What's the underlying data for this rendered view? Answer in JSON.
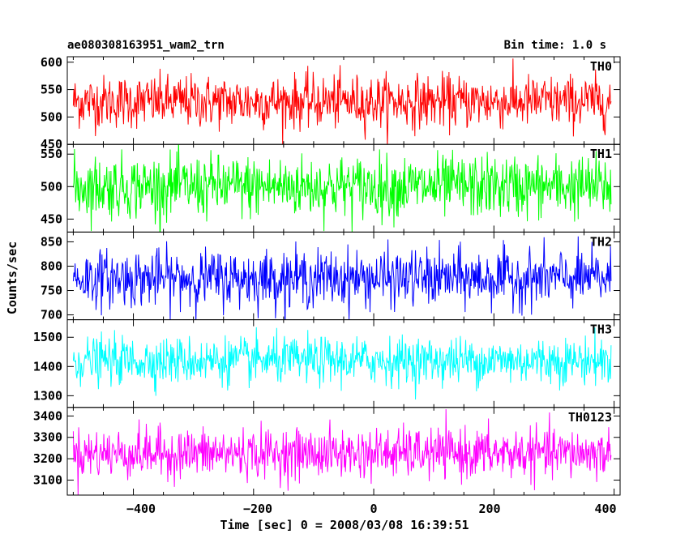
{
  "header": {
    "object_name": "ae080308163951_wam2_trn",
    "bin_time": "Bin time: 1.0 s"
  },
  "axes": {
    "ylabel": "Counts/sec",
    "xlabel": "Time [sec] 0 = 2008/03/08 16:39:51",
    "x_ticks": [
      "−400",
      "−200",
      "0",
      "200",
      "400"
    ]
  },
  "chart_data": {
    "type": "line",
    "x_range": [
      -510,
      410
    ],
    "x_ticks": [
      -400,
      -200,
      0,
      200,
      400
    ],
    "n_points": 900,
    "series": [
      {
        "name": "TH0",
        "color": "#ff0000",
        "ylim": [
          450,
          610
        ],
        "y_ticks": [
          450,
          500,
          550,
          600
        ],
        "mean": 528,
        "sigma": 24
      },
      {
        "name": "TH1",
        "color": "#00ff00",
        "ylim": [
          430,
          565
        ],
        "y_ticks": [
          450,
          500,
          550
        ],
        "mean": 500,
        "sigma": 24
      },
      {
        "name": "TH2",
        "color": "#0000ff",
        "ylim": [
          690,
          870
        ],
        "y_ticks": [
          700,
          750,
          800,
          850
        ],
        "mean": 775,
        "sigma": 29
      },
      {
        "name": "TH3",
        "color": "#00ffff",
        "ylim": [
          1260,
          1560
        ],
        "y_ticks": [
          1300,
          1400,
          1500
        ],
        "mean": 1420,
        "sigma": 40
      },
      {
        "name": "TH0123",
        "color": "#ff00ff",
        "ylim": [
          3030,
          3440
        ],
        "y_ticks": [
          3100,
          3200,
          3300,
          3400
        ],
        "mean": 3225,
        "sigma": 58
      }
    ]
  }
}
